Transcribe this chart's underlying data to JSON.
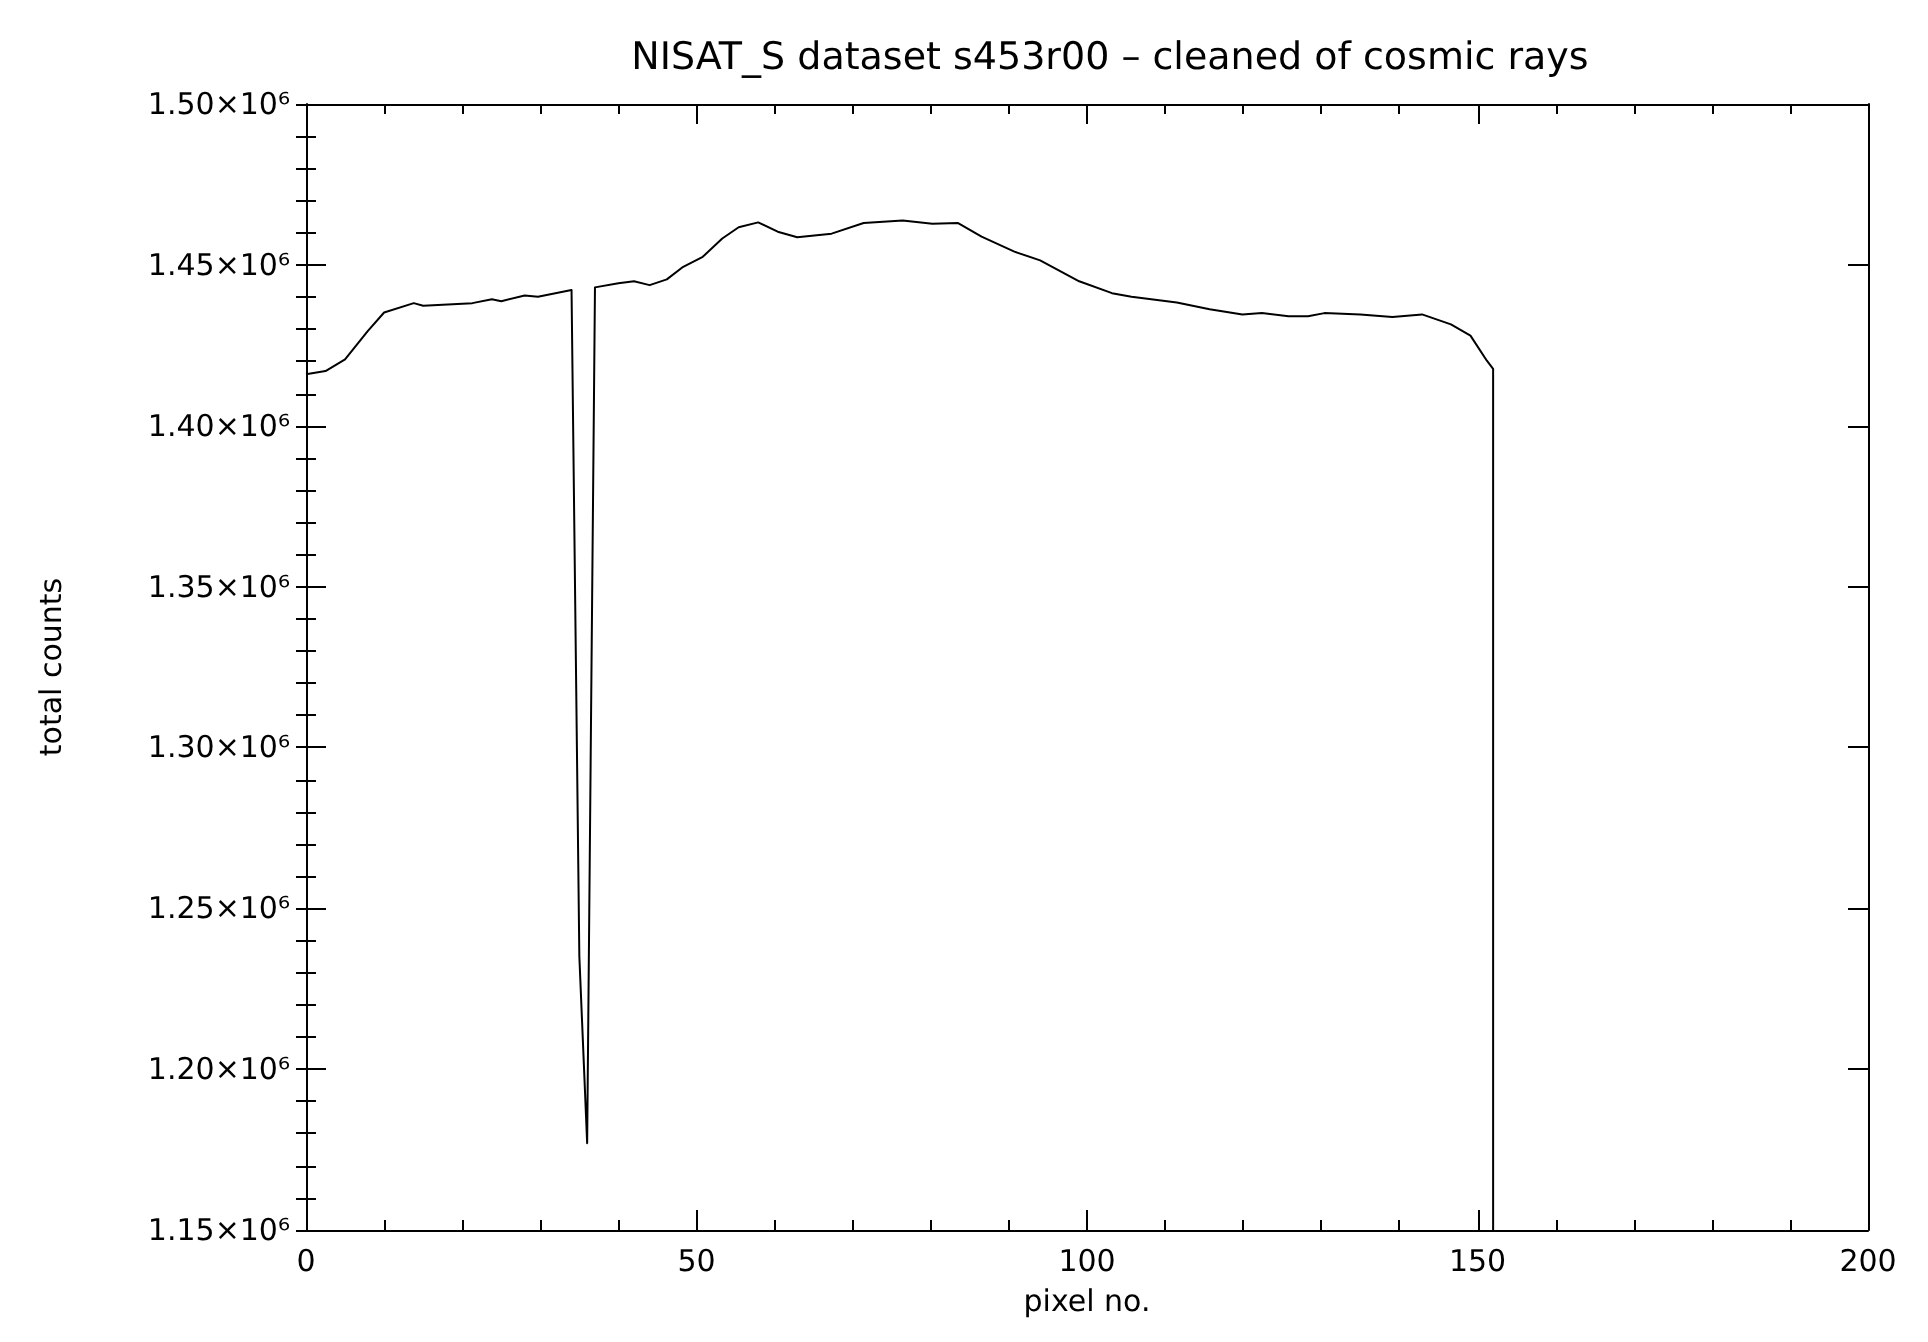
{
  "chart_data": {
    "type": "line",
    "title": "NISAT_S dataset s453r00 – cleaned of cosmic rays",
    "xlabel": "pixel no.",
    "ylabel": "total counts",
    "xlim": [
      0,
      200
    ],
    "xticks": [
      0,
      50,
      100,
      150,
      200
    ],
    "ylim": [
      1150000,
      1500000
    ],
    "yticks": [
      {
        "value": 1150000,
        "label": "1.15×10⁶"
      },
      {
        "value": 1200000,
        "label": "1.20×10⁶"
      },
      {
        "value": 1250000,
        "label": "1.25×10⁶"
      },
      {
        "value": 1300000,
        "label": "1.30×10⁶"
      },
      {
        "value": 1350000,
        "label": "1.35×10⁶"
      },
      {
        "value": 1400000,
        "label": "1.40×10⁶"
      },
      {
        "value": 1450000,
        "label": "1.45×10⁶"
      },
      {
        "value": 1500000,
        "label": "1.50×10⁶"
      }
    ],
    "grid": false,
    "marker": "none",
    "line_style": "solid",
    "series": [
      {
        "color": "#000000",
        "x": [
          0,
          2.5,
          5,
          7.9,
          10,
          13.8,
          15,
          21.3,
          23.8,
          25,
          28,
          29.7,
          34,
          35,
          36,
          37,
          40,
          42,
          44,
          46.2,
          48.3,
          50.8,
          53.3,
          55.4,
          57.9,
          60.4,
          62.9,
          65.4,
          67.3,
          71.4,
          76.4,
          80.2,
          83.5,
          86.5,
          90.7,
          94,
          99,
          103.2,
          105.7,
          111.5,
          115.7,
          119.9,
          122.4,
          125.8,
          128.3,
          130.4,
          135,
          139.1,
          142.9,
          146.6,
          149.1,
          151.2,
          152,
          152
        ],
        "values": [
          1416000,
          1417000,
          1420600,
          1429400,
          1435200,
          1438100,
          1437300,
          1438100,
          1439300,
          1438700,
          1440500,
          1440100,
          1442200,
          1235000,
          1177000,
          1443000,
          1444300,
          1444900,
          1443700,
          1445500,
          1449400,
          1452500,
          1458200,
          1461700,
          1463200,
          1460300,
          1458600,
          1459200,
          1459700,
          1463000,
          1463800,
          1462800,
          1463000,
          1458800,
          1454100,
          1451400,
          1444900,
          1441200,
          1440100,
          1438300,
          1436200,
          1434600,
          1435000,
          1434000,
          1434000,
          1435000,
          1434600,
          1433800,
          1434600,
          1431500,
          1428000,
          1420200,
          1417700,
          1150000
        ]
      }
    ]
  }
}
